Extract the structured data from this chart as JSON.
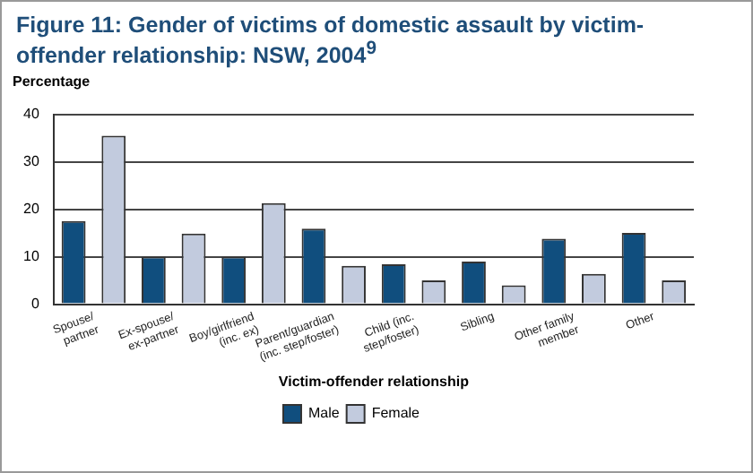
{
  "chart_data": {
    "type": "bar",
    "title": "Figure 11: Gender of victims of domestic assault by victim-offender relationship: NSW, 2004$^{9}$",
    "ylabel": "Percentage",
    "xlabel": "Victim-offender relationship",
    "categories": [
      "Spouse/\npartner",
      "Ex-spouse/\nex-partner",
      "Boy/girlfriend\n(inc. ex)",
      "Parent/guardian\n(inc. step/foster)",
      "Child (inc.\nstep/foster)",
      "Sibling",
      "Other family\nmember",
      "Other"
    ],
    "series": [
      {
        "name": "Male",
        "color": "#104e7e",
        "values": [
          17.5,
          10,
          10,
          15.9,
          8.4,
          9,
          13.8,
          15
        ]
      },
      {
        "name": "Female",
        "color": "#c2cbde",
        "values": [
          35.5,
          14.9,
          21.3,
          8.1,
          5,
          4,
          6.4,
          5
        ]
      }
    ],
    "ylim": [
      0,
      40
    ],
    "yticks": [
      0,
      10,
      20,
      30,
      40
    ],
    "grid": "y",
    "legend": "bottom"
  }
}
